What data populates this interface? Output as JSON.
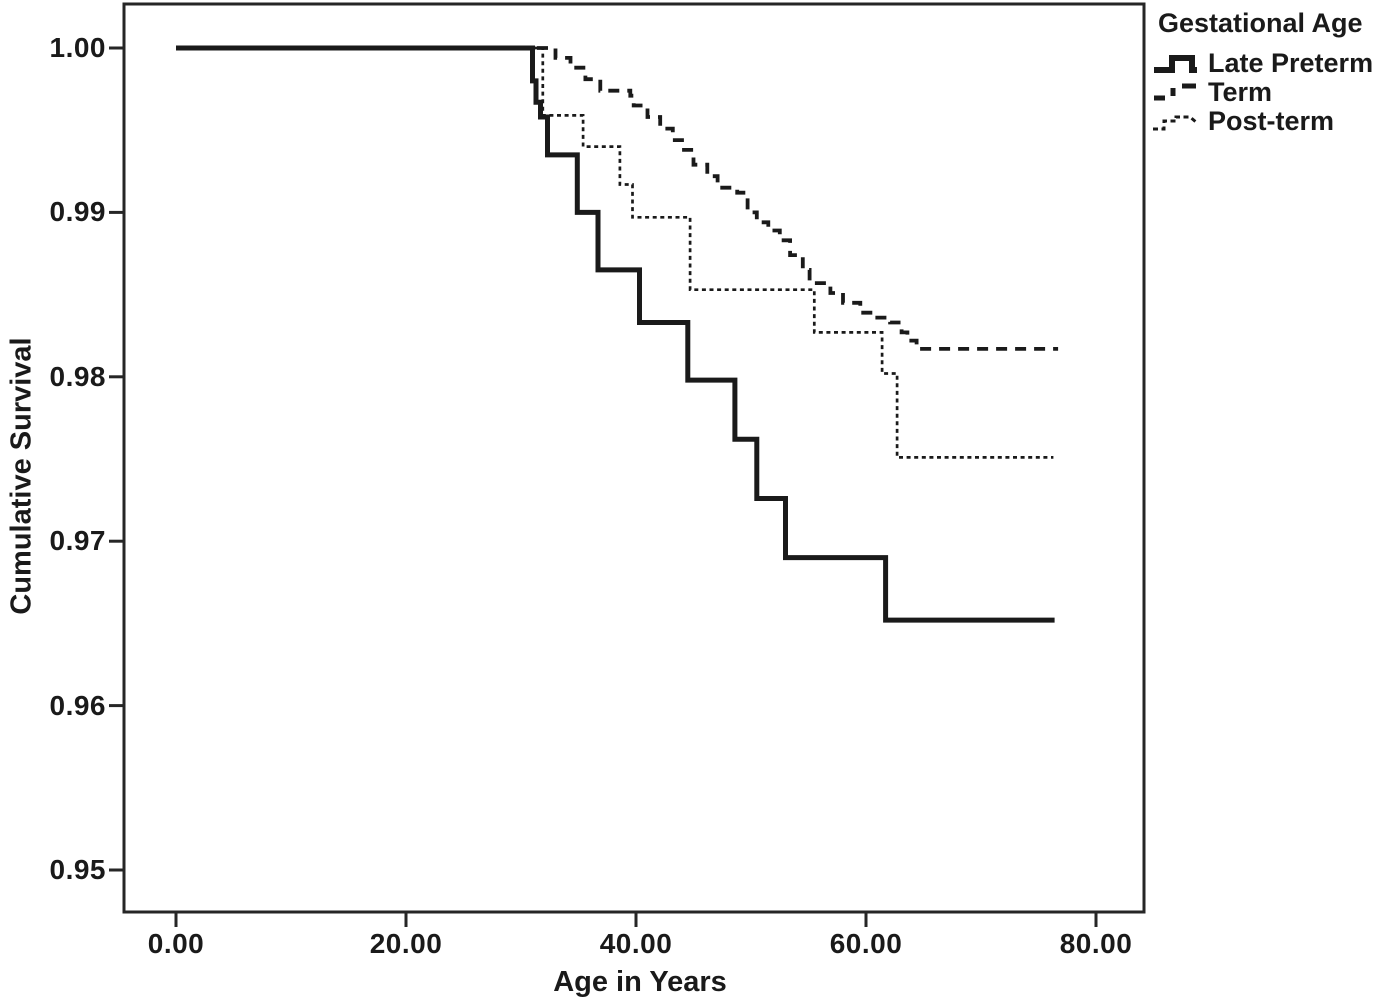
{
  "figure": {
    "background": "#ffffff",
    "frame_color": "#262626",
    "line_color": "#1a1a1a",
    "text_color": "#1a1a1a"
  },
  "chart_data": {
    "type": "line",
    "subtype": "kaplan-meier-step",
    "title": "",
    "xlabel": "Age in Years",
    "ylabel": "Cumulative Survival",
    "xlim": [
      0,
      84
    ],
    "ylim": [
      0.9475,
      1.0027
    ],
    "grid": false,
    "x_ticks": [
      "0.00",
      "20.00",
      "40.00",
      "60.00",
      "80.00"
    ],
    "x_tick_values": [
      0,
      20,
      40,
      60,
      80
    ],
    "y_ticks": [
      "1.00",
      "0.99",
      "0.98",
      "0.97",
      "0.96",
      "0.95"
    ],
    "y_tick_values": [
      1.0,
      0.99,
      0.98,
      0.97,
      0.96,
      0.95
    ],
    "legend": {
      "title": "Gestational Age",
      "position": "outside-top-right",
      "entries": [
        {
          "label": "Late Preterm",
          "line_style": "solid"
        },
        {
          "label": "Term",
          "line_style": "dashed"
        },
        {
          "label": "Post-term",
          "line_style": "dotted"
        }
      ]
    },
    "series": [
      {
        "name": "Term",
        "line_style": "dashed",
        "points": [
          [
            0,
            1.0
          ],
          [
            33.0,
            0.9994
          ],
          [
            34.3,
            0.9988
          ],
          [
            35.6,
            0.9981
          ],
          [
            36.9,
            0.9974
          ],
          [
            39.5,
            0.9971
          ],
          [
            39.8,
            0.9965
          ],
          [
            41.0,
            0.9958
          ],
          [
            42.1,
            0.9951
          ],
          [
            43.2,
            0.9944
          ],
          [
            44.0,
            0.9938
          ],
          [
            45.0,
            0.9929
          ],
          [
            46.2,
            0.9922
          ],
          [
            47.1,
            0.9915
          ],
          [
            48.8,
            0.9912
          ],
          [
            49.7,
            0.99
          ],
          [
            50.5,
            0.9894
          ],
          [
            51.5,
            0.9889
          ],
          [
            52.5,
            0.9883
          ],
          [
            53.4,
            0.9874
          ],
          [
            54.5,
            0.9865
          ],
          [
            55.1,
            0.9857
          ],
          [
            56.9,
            0.9851
          ],
          [
            58.0,
            0.9845
          ],
          [
            59.5,
            0.9839
          ],
          [
            60.8,
            0.9836
          ],
          [
            62.1,
            0.9833
          ],
          [
            63.1,
            0.9827
          ],
          [
            63.6,
            0.9822
          ],
          [
            64.4,
            0.9817
          ],
          [
            76.7,
            0.9817
          ]
        ]
      },
      {
        "name": "Post-term",
        "line_style": "dotted",
        "points": [
          [
            0,
            1.0
          ],
          [
            31.9,
            0.9959
          ],
          [
            35.4,
            0.994
          ],
          [
            38.6,
            0.9917
          ],
          [
            39.7,
            0.9897
          ],
          [
            44.7,
            0.9853
          ],
          [
            55.5,
            0.9827
          ],
          [
            61.4,
            0.9802
          ],
          [
            62.7,
            0.9751
          ],
          [
            76.3,
            0.9751
          ]
        ]
      },
      {
        "name": "Late Preterm",
        "line_style": "solid",
        "points": [
          [
            0,
            1.0
          ],
          [
            31.0,
            0.998
          ],
          [
            31.3,
            0.9967
          ],
          [
            31.7,
            0.9958
          ],
          [
            32.3,
            0.9935
          ],
          [
            34.9,
            0.99
          ],
          [
            36.7,
            0.9865
          ],
          [
            40.3,
            0.9833
          ],
          [
            44.5,
            0.9798
          ],
          [
            48.6,
            0.9762
          ],
          [
            50.5,
            0.9726
          ],
          [
            53.0,
            0.969
          ],
          [
            61.7,
            0.9652
          ],
          [
            76.4,
            0.9652
          ]
        ]
      }
    ]
  }
}
